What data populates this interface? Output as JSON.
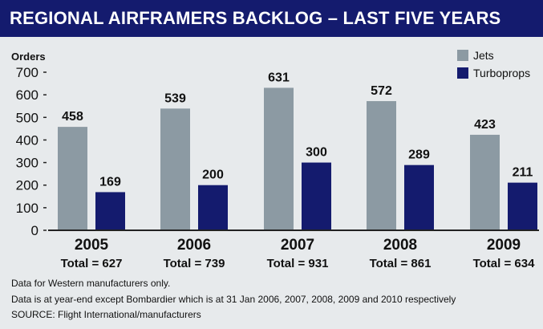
{
  "title": "REGIONAL AIRFRAMERS BACKLOG – LAST FIVE YEARS",
  "colors": {
    "header_bg": "#141b6e",
    "panel_bg": "#e7eaec",
    "jets": "#8c9aa3",
    "turboprops": "#141b6e"
  },
  "notes": [
    "Data for Western manufacturers only.",
    "Data is at year-end except Bombardier which is at 31 Jan 2006, 2007, 2008, 2009 and 2010 respectively",
    "SOURCE: Flight International/manufacturers"
  ],
  "chart_data": {
    "type": "bar",
    "ylabel": "Orders",
    "ylim": [
      0,
      700
    ],
    "yticks": [
      0,
      100,
      200,
      300,
      400,
      500,
      600,
      700
    ],
    "grid": false,
    "legend_position": "top-right",
    "categories": [
      "2005",
      "2006",
      "2007",
      "2008",
      "2009"
    ],
    "totals": [
      "Total = 627",
      "Total = 739",
      "Total = 931",
      "Total = 861",
      "Total = 634"
    ],
    "series": [
      {
        "name": "Jets",
        "color": "#8c9aa3",
        "values": [
          458,
          539,
          631,
          572,
          423
        ]
      },
      {
        "name": "Turboprops",
        "color": "#141b6e",
        "values": [
          169,
          200,
          300,
          289,
          211
        ]
      }
    ]
  }
}
